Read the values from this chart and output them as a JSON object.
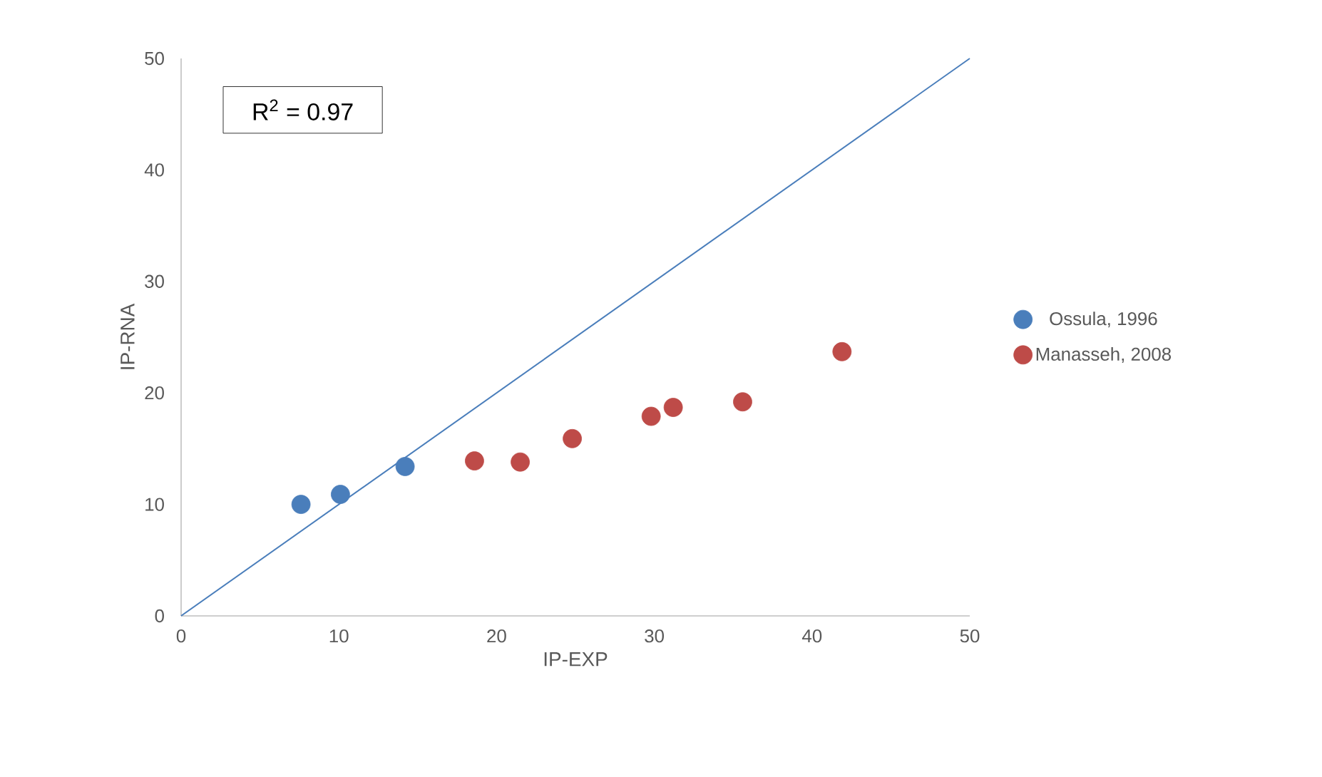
{
  "chart_data": {
    "type": "scatter",
    "xlabel": "IP-EXP",
    "ylabel": "IP-RNA",
    "annotations": [
      "R$^{2}$ = 0.97"
    ],
    "series": [
      {
        "name": "Ossula, 1996",
        "color": "#4a7ebb",
        "marker": "circle",
        "x": [
          7.6,
          10.1,
          14.2
        ],
        "values": [
          10.0,
          10.9,
          13.4
        ]
      },
      {
        "name": "Manasseh, 2008",
        "color": "#be4b48",
        "marker": "circle",
        "x": [
          18.6,
          21.5,
          24.8,
          29.8,
          31.2,
          35.6,
          41.9
        ],
        "values": [
          13.9,
          13.8,
          15.9,
          17.9,
          18.7,
          19.2,
          23.7
        ]
      },
      {
        "type": "line",
        "color": "#4a7ebb",
        "marker": "none",
        "x": [
          0,
          50
        ],
        "values": [
          0,
          50
        ]
      }
    ],
    "legend": "right",
    "xlim": [
      0,
      50
    ],
    "ylim": [
      0,
      50
    ],
    "xticks": [
      0,
      10,
      20,
      30,
      40,
      50
    ],
    "yticks": [
      0,
      10,
      20,
      30,
      40,
      50
    ]
  }
}
